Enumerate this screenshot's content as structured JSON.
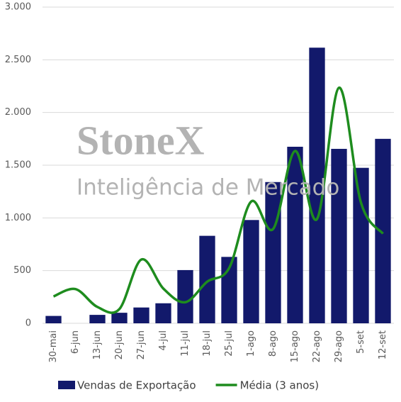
{
  "chart_data": {
    "type": "bar_line",
    "watermark": "StoneX",
    "watermark_subtitle": "Inteligência de Mercado",
    "categories": [
      "30-mai",
      "6-jun",
      "13-jun",
      "20-jun",
      "27-jun",
      "4-jul",
      "11-jul",
      "18-jul",
      "25-jul",
      "1-ago",
      "8-ago",
      "15-ago",
      "22-ago",
      "29-ago",
      "5-set",
      "12-set"
    ],
    "series": [
      {
        "name": "Vendas de Exportação",
        "type": "bar",
        "color": "#12196b",
        "values": [
          70,
          0,
          80,
          100,
          150,
          190,
          505,
          830,
          630,
          980,
          1340,
          1675,
          2615,
          1655,
          1475,
          1750
        ]
      },
      {
        "name": "Média (3 anos)",
        "type": "line",
        "color": "#1e8c1e",
        "values": [
          255,
          325,
          155,
          135,
          605,
          330,
          200,
          395,
          525,
          1155,
          895,
          1635,
          990,
          2235,
          1145,
          850
        ]
      }
    ],
    "ylim": [
      0,
      3000
    ],
    "yticks": [
      0,
      500,
      {
        "value": 1000,
        "label": "1.000"
      },
      {
        "value": 1500,
        "label": "1.500"
      },
      {
        "value": 2000,
        "label": "2.000"
      },
      {
        "value": 2500,
        "label": "2.500"
      },
      {
        "value": 3000,
        "label": "3.000"
      }
    ],
    "grid": true,
    "legend": "bottom"
  }
}
